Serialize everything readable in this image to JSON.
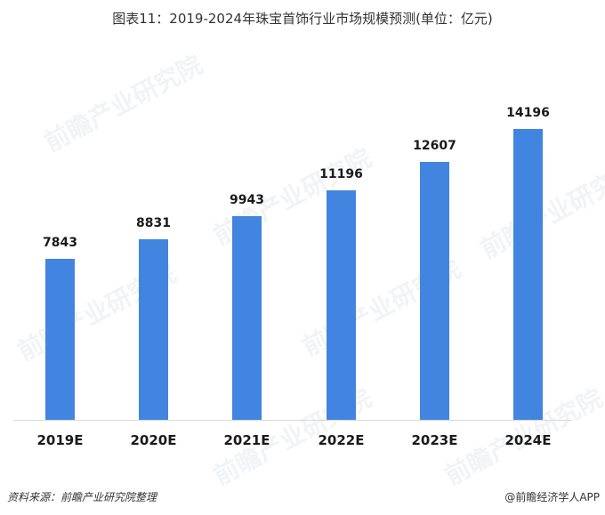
{
  "title": "图表11：2019-2024年珠宝首饰行业市场规模预测(单位：亿元)",
  "chart_data": {
    "type": "bar",
    "title": "图表11：2019-2024年珠宝首饰行业市场规模预测(单位：亿元)",
    "xlabel": "",
    "ylabel": "亿元",
    "categories": [
      "2019E",
      "2020E",
      "2021E",
      "2022E",
      "2023E",
      "2024E"
    ],
    "values": [
      7843,
      8831,
      9943,
      11196,
      12607,
      14196
    ],
    "labels": [
      "7843",
      "8831",
      "9943",
      "11196",
      "12607",
      "14196"
    ],
    "ylim": [
      0,
      16000
    ],
    "grid": false,
    "legend": "none",
    "bar_color": "#4285e0"
  },
  "footer": {
    "source": "资料来源：前瞻产业研究院整理",
    "credit": "@前瞻经济学人APP"
  },
  "watermark": "前瞻产业研究院"
}
